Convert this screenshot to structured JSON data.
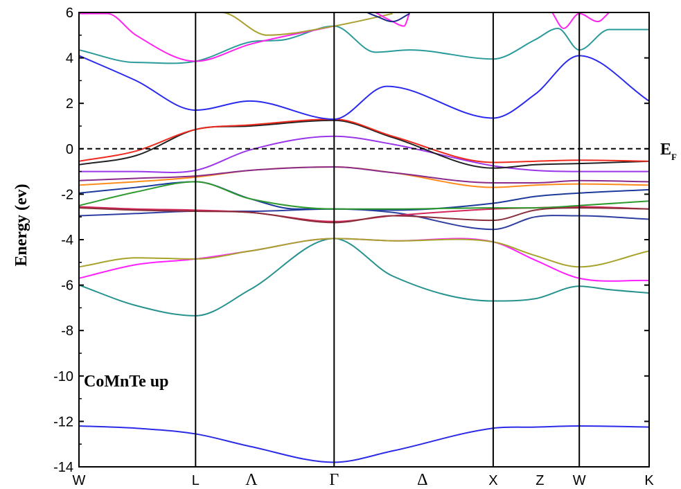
{
  "chart_data": {
    "type": "line",
    "title": "",
    "panel_label": "CoMnTe up",
    "ylabel": "Energy (ev)",
    "fermi_label": "E",
    "fermi_subscript": "F",
    "fermi_level": 0,
    "ylim": [
      -14,
      6
    ],
    "xlim": [
      0,
      1
    ],
    "yticks": [
      6,
      4,
      2,
      0,
      -2,
      -4,
      -6,
      -8,
      -10,
      -12,
      -14
    ],
    "xticks": [
      {
        "x": 0.0,
        "label": "W",
        "serif": false,
        "line": false
      },
      {
        "x": 0.2045,
        "label": "L",
        "serif": false,
        "line": true
      },
      {
        "x": 0.3025,
        "label": "Λ",
        "serif": true,
        "line": false
      },
      {
        "x": 0.4475,
        "label": "Γ",
        "serif": true,
        "line": true
      },
      {
        "x": 0.6025,
        "label": "Δ",
        "serif": true,
        "line": false
      },
      {
        "x": 0.7265,
        "label": "X",
        "serif": false,
        "line": true
      },
      {
        "x": 0.8085,
        "label": "Z",
        "serif": false,
        "line": false
      },
      {
        "x": 0.8775,
        "label": "W",
        "serif": false,
        "line": true
      },
      {
        "x": 1.0,
        "label": "K",
        "serif": false,
        "line": false
      }
    ],
    "series": [
      {
        "color": "#2a2ae8",
        "x": [
          0,
          0.1,
          0.2045,
          0.3,
          0.4475,
          0.55,
          0.7265,
          0.8,
          0.8775,
          1.0
        ],
        "y": [
          -12.2,
          -12.3,
          -12.55,
          -13.1,
          -13.8,
          -13.3,
          -12.3,
          -12.25,
          -12.2,
          -12.25
        ]
      },
      {
        "color": "#26928e",
        "x": [
          0,
          0.1,
          0.2045,
          0.3,
          0.4475,
          0.55,
          0.7265,
          0.8,
          0.8775,
          0.93,
          1.0
        ],
        "y": [
          -6.0,
          -6.9,
          -7.35,
          -6.2,
          -3.95,
          -5.6,
          -6.7,
          -6.6,
          -6.05,
          -6.2,
          -6.35
        ]
      },
      {
        "color": "#ff1fff",
        "x": [
          0,
          0.1,
          0.2045,
          0.3,
          0.4475,
          0.55,
          0.7265,
          0.8,
          0.8775,
          1.0
        ],
        "y": [
          -5.7,
          -5.1,
          -4.85,
          -4.5,
          -3.95,
          -4.05,
          -4.1,
          -4.9,
          -5.7,
          -5.8
        ]
      },
      {
        "color": "#a6a22a",
        "x": [
          0,
          0.1,
          0.2045,
          0.3,
          0.4475,
          0.55,
          0.7265,
          0.8,
          0.8775,
          1.0
        ],
        "y": [
          -5.2,
          -4.8,
          -4.85,
          -4.5,
          -3.95,
          -4.05,
          -4.1,
          -4.7,
          -5.2,
          -4.5
        ]
      },
      {
        "color": "#2e3ea0",
        "x": [
          0,
          0.1,
          0.2045,
          0.3,
          0.4475,
          0.55,
          0.7265,
          0.8,
          0.8775,
          1.0
        ],
        "y": [
          -2.95,
          -2.85,
          -2.75,
          -2.75,
          -2.65,
          -2.8,
          -3.55,
          -3.0,
          -2.95,
          -3.1
        ]
      },
      {
        "color": "#1b3a9c",
        "x": [
          0,
          0.1,
          0.2045,
          0.3,
          0.38,
          0.4475,
          0.55,
          0.7265,
          0.8,
          0.8775,
          1.0
        ],
        "y": [
          -1.95,
          -1.7,
          -1.45,
          -2.2,
          -2.65,
          -2.65,
          -2.7,
          -2.4,
          -2.1,
          -1.95,
          -1.8
        ]
      },
      {
        "color": "#d3265a",
        "x": [
          0,
          0.1,
          0.2045,
          0.3,
          0.4475,
          0.55,
          0.7265,
          0.8,
          0.8775,
          1.0
        ],
        "y": [
          -2.55,
          -2.65,
          -2.7,
          -2.8,
          -3.2,
          -2.95,
          -2.65,
          -2.6,
          -2.55,
          -2.65
        ]
      },
      {
        "color": "#2e9a2e",
        "x": [
          0,
          0.1,
          0.2045,
          0.3,
          0.4475,
          0.55,
          0.7265,
          0.8,
          0.8775,
          1.0
        ],
        "y": [
          -2.5,
          -1.9,
          -1.45,
          -2.2,
          -2.65,
          -2.65,
          -2.6,
          -2.6,
          -2.5,
          -2.3
        ]
      },
      {
        "color": "#8a2e3a",
        "x": [
          0,
          0.1,
          0.2045,
          0.3,
          0.4475,
          0.55,
          0.7265,
          0.8,
          0.8775,
          1.0
        ],
        "y": [
          -2.6,
          -2.7,
          -2.75,
          -2.8,
          -3.25,
          -2.95,
          -3.15,
          -2.7,
          -2.6,
          -2.65
        ]
      },
      {
        "color": "#ff8c1a",
        "x": [
          0,
          0.1,
          0.2045,
          0.3,
          0.4475,
          0.55,
          0.7265,
          0.8,
          0.8775,
          1.0
        ],
        "y": [
          -1.6,
          -1.45,
          -1.25,
          -0.95,
          -0.8,
          -1.05,
          -1.7,
          -1.6,
          -1.55,
          -1.6
        ]
      },
      {
        "color": "#8a2a8a",
        "x": [
          0,
          0.1,
          0.2045,
          0.3,
          0.4475,
          0.55,
          0.7265,
          0.8,
          0.8775,
          1.0
        ],
        "y": [
          -1.4,
          -1.3,
          -1.2,
          -0.95,
          -0.8,
          -1.05,
          -1.5,
          -1.5,
          -1.4,
          -1.45
        ]
      },
      {
        "color": "#9a35ea",
        "x": [
          0,
          0.1,
          0.2045,
          0.3,
          0.4475,
          0.55,
          0.7265,
          0.8,
          0.8775,
          1.0
        ],
        "y": [
          -1.0,
          -1.0,
          -0.95,
          -0.05,
          0.55,
          0.2,
          -0.75,
          -0.95,
          -1.0,
          -1.0
        ]
      },
      {
        "color": "#222222",
        "x": [
          0,
          0.1,
          0.2045,
          0.3,
          0.4475,
          0.55,
          0.7265,
          0.8,
          0.8775,
          1.0
        ],
        "y": [
          -0.7,
          -0.3,
          0.85,
          1.0,
          1.25,
          0.5,
          -0.85,
          -0.7,
          -0.65,
          -0.55
        ]
      },
      {
        "color": "#ee2a1e",
        "x": [
          0,
          0.1,
          0.2045,
          0.3,
          0.4475,
          0.55,
          0.7265,
          0.8,
          0.8775,
          1.0
        ],
        "y": [
          -0.55,
          -0.1,
          0.85,
          1.05,
          1.3,
          0.55,
          -0.6,
          -0.55,
          -0.5,
          -0.55
        ]
      },
      {
        "color": "#2a2aee",
        "x": [
          0,
          0.1,
          0.2045,
          0.3,
          0.4475,
          0.54,
          0.7265,
          0.8,
          0.8775,
          1.0
        ],
        "y": [
          4.1,
          3.0,
          1.7,
          2.1,
          1.3,
          2.75,
          1.35,
          2.4,
          4.1,
          2.1
        ]
      },
      {
        "color": "#2a9a9a",
        "x": [
          0,
          0.1,
          0.2045,
          0.3,
          0.36,
          0.4475,
          0.52,
          0.58,
          0.7265,
          0.8,
          0.84,
          0.8775,
          0.93,
          1.0
        ],
        "y": [
          4.35,
          3.8,
          3.85,
          4.7,
          4.8,
          5.4,
          4.25,
          4.35,
          3.95,
          4.8,
          5.3,
          4.35,
          5.25,
          5.25
        ]
      },
      {
        "color": "#ff22ee",
        "x": [
          0,
          0.05,
          0.1,
          0.2045,
          0.3,
          0.4475
        ],
        "y": [
          5.95,
          5.95,
          5.0,
          3.85,
          4.6,
          5.4
        ]
      },
      {
        "color": "#a9a030",
        "x": [
          0.15,
          0.25,
          0.33,
          0.4475,
          0.55
        ],
        "y": [
          6.0,
          6.0,
          5.0,
          5.4,
          5.95
        ]
      },
      {
        "color": "#ff22ee",
        "x": [
          0.52,
          0.55,
          0.57,
          0.58
        ],
        "y": [
          6.0,
          5.6,
          5.4,
          6.0
        ]
      },
      {
        "color": "#1b2a8a",
        "x": [
          0.505,
          0.52,
          0.55,
          0.58
        ],
        "y": [
          6.0,
          5.85,
          5.6,
          5.95
        ]
      },
      {
        "color": "#ff22ee",
        "x": [
          0.83,
          0.85,
          0.8775,
          0.91,
          0.93
        ],
        "y": [
          6.0,
          5.3,
          5.95,
          5.6,
          6.0
        ]
      }
    ]
  }
}
